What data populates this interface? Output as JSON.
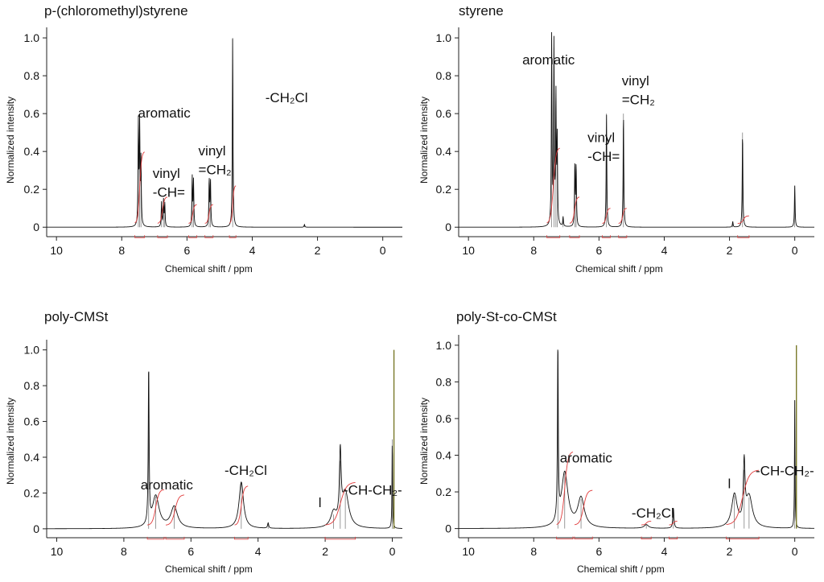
{
  "colors": {
    "spectrum": "#111111",
    "integral": "#e03a3a",
    "tms": "#7a7a2a",
    "axis": "#222222"
  },
  "chart_data": [
    {
      "type": "line",
      "title": "p-(chloromethyl)styrene",
      "xlabel": "Chemical shift / ppm",
      "ylabel": "Normalized intensity",
      "xlim": [
        10.3,
        -0.6
      ],
      "ylim": [
        -0.05,
        1.03
      ],
      "x_ticks": [
        10,
        8,
        6,
        4,
        2,
        0
      ],
      "y_ticks": [
        "0",
        "0.2",
        "0.4",
        "0.6",
        "0.8",
        "1.0"
      ],
      "reversed_x": true,
      "peaks": [
        {
          "x": 7.49,
          "y": 0.54
        },
        {
          "x": 7.45,
          "y": 0.52
        },
        {
          "x": 7.41,
          "y": 0.34
        },
        {
          "x": 6.78,
          "y": 0.13
        },
        {
          "x": 6.72,
          "y": 0.14
        },
        {
          "x": 6.68,
          "y": 0.12
        },
        {
          "x": 5.84,
          "y": 0.26
        },
        {
          "x": 5.8,
          "y": 0.24
        },
        {
          "x": 5.32,
          "y": 0.25
        },
        {
          "x": 5.28,
          "y": 0.24
        },
        {
          "x": 4.6,
          "y": 1.0
        },
        {
          "x": 2.4,
          "y": 0.015
        }
      ],
      "integrals": [
        {
          "from": 7.6,
          "to": 7.3,
          "height": 0.38
        },
        {
          "from": 6.9,
          "to": 6.6,
          "height": 0.14
        },
        {
          "from": 5.95,
          "to": 5.7,
          "height": 0.1
        },
        {
          "from": 5.45,
          "to": 5.2,
          "height": 0.1
        },
        {
          "from": 4.7,
          "to": 4.5,
          "height": 0.2
        }
      ],
      "annotations": [
        {
          "text": "aromatic",
          "x": 7.5,
          "y": 0.58
        },
        {
          "text": "vinyl",
          "x": 7.05,
          "y": 0.26
        },
        {
          "text": "-CH=",
          "x": 7.05,
          "y": 0.16
        },
        {
          "text": "vinyl",
          "x": 5.65,
          "y": 0.38
        },
        {
          "text": "=CH₂",
          "x": 5.65,
          "y": 0.28
        },
        {
          "text": "-CH₂Cl",
          "x": 3.6,
          "y": 0.66
        }
      ]
    },
    {
      "type": "line",
      "title": "styrene",
      "xlabel": "Chemical shift / ppm",
      "ylabel": "Normalized intensity",
      "xlim": [
        10.3,
        -0.6
      ],
      "ylim": [
        -0.05,
        1.03
      ],
      "x_ticks": [
        10,
        8,
        6,
        4,
        2,
        0
      ],
      "y_ticks": [
        "0",
        "0.2",
        "0.4",
        "0.6",
        "0.8",
        "1.0"
      ],
      "reversed_x": true,
      "peaks": [
        {
          "x": 7.45,
          "y": 1.0
        },
        {
          "x": 7.38,
          "y": 0.95
        },
        {
          "x": 7.32,
          "y": 0.68
        },
        {
          "x": 7.28,
          "y": 0.45
        },
        {
          "x": 7.1,
          "y": 0.05
        },
        {
          "x": 6.74,
          "y": 0.32
        },
        {
          "x": 6.7,
          "y": 0.32
        },
        {
          "x": 5.77,
          "y": 0.6
        },
        {
          "x": 5.25,
          "y": 0.6
        },
        {
          "x": 1.6,
          "y": 0.5
        },
        {
          "x": 1.9,
          "y": 0.03
        },
        {
          "x": 0.0,
          "y": 0.22
        }
      ],
      "integrals": [
        {
          "from": 7.6,
          "to": 7.2,
          "height": 0.4
        },
        {
          "from": 6.9,
          "to": 6.6,
          "height": 0.14
        },
        {
          "from": 5.9,
          "to": 5.65,
          "height": 0.08
        },
        {
          "from": 5.4,
          "to": 5.15,
          "height": 0.08
        },
        {
          "from": 1.75,
          "to": 1.4,
          "height": 0.04
        }
      ],
      "annotations": [
        {
          "text": "aromatic",
          "x": 8.35,
          "y": 0.86
        },
        {
          "text": "vinyl",
          "x": 6.35,
          "y": 0.45
        },
        {
          "text": "-CH=",
          "x": 6.35,
          "y": 0.35
        },
        {
          "text": "vinyl",
          "x": 5.3,
          "y": 0.75
        },
        {
          "text": "=CH₂",
          "x": 5.3,
          "y": 0.65
        }
      ]
    },
    {
      "type": "line",
      "title": "poly-CMSt",
      "xlabel": "Chemical shift / ppm",
      "ylabel": "Normalized intensity",
      "xlim": [
        10.3,
        -0.3
      ],
      "ylim": [
        -0.05,
        1.03
      ],
      "x_ticks": [
        10,
        8,
        6,
        4,
        2,
        0
      ],
      "y_ticks": [
        "0",
        "0.2",
        "0.4",
        "0.6",
        "0.8",
        "1.0"
      ],
      "reversed_x": true,
      "peaks": [
        {
          "x": 7.26,
          "y": 0.88,
          "w": 0.015
        },
        {
          "x": 7.05,
          "y": 0.18,
          "w": 0.12
        },
        {
          "x": 6.5,
          "y": 0.12,
          "w": 0.12
        },
        {
          "x": 4.5,
          "y": 0.26,
          "w": 0.08
        },
        {
          "x": 3.7,
          "y": 0.03,
          "w": 0.02
        },
        {
          "x": 1.75,
          "y": 0.08,
          "w": 0.1
        },
        {
          "x": 1.55,
          "y": 0.38,
          "w": 0.03
        },
        {
          "x": 1.4,
          "y": 0.2,
          "w": 0.12
        },
        {
          "x": 0.0,
          "y": 0.5,
          "w": 0.01
        }
      ],
      "tms_line": {
        "x": -0.05,
        "y": 1.0
      },
      "integrals": [
        {
          "from": 7.3,
          "to": 6.8,
          "height": 0.2
        },
        {
          "from": 6.75,
          "to": 6.2,
          "height": 0.17
        },
        {
          "from": 4.7,
          "to": 4.3,
          "height": 0.22
        },
        {
          "from": 2.0,
          "to": 1.1,
          "height": 0.24
        }
      ],
      "annotations": [
        {
          "text": "aromatic",
          "x": 7.5,
          "y": 0.22
        },
        {
          "text": "-CH₂Cl",
          "x": 5.0,
          "y": 0.3
        },
        {
          "text": "-CH-CH₂-",
          "x": 1.45,
          "y": 0.19
        },
        {
          "text": "l",
          "x": 2.2,
          "y": 0.12
        }
      ]
    },
    {
      "type": "line",
      "title": "poly-St-co-CMSt",
      "xlabel": "Chemical shift / ppm",
      "ylabel": "Normalized intensity",
      "xlim": [
        10.3,
        -0.6
      ],
      "ylim": [
        -0.05,
        1.03
      ],
      "x_ticks": [
        10,
        8,
        6,
        4,
        2,
        0
      ],
      "y_ticks": [
        "0",
        "0.2",
        "0.4",
        "0.6",
        "0.8",
        "1.0"
      ],
      "reversed_x": true,
      "peaks": [
        {
          "x": 7.26,
          "y": 0.95,
          "w": 0.015
        },
        {
          "x": 7.05,
          "y": 0.3,
          "w": 0.12
        },
        {
          "x": 6.55,
          "y": 0.16,
          "w": 0.12
        },
        {
          "x": 4.55,
          "y": 0.02,
          "w": 0.08
        },
        {
          "x": 3.72,
          "y": 0.11,
          "w": 0.02
        },
        {
          "x": 1.85,
          "y": 0.18,
          "w": 0.1
        },
        {
          "x": 1.55,
          "y": 0.32,
          "w": 0.03
        },
        {
          "x": 1.4,
          "y": 0.17,
          "w": 0.12
        },
        {
          "x": 0.0,
          "y": 0.7,
          "w": 0.01
        }
      ],
      "tms_line": {
        "x": -0.05,
        "y": 1.0
      },
      "integrals": [
        {
          "from": 7.3,
          "to": 6.8,
          "height": 0.4
        },
        {
          "from": 6.75,
          "to": 6.2,
          "height": 0.19
        },
        {
          "from": 4.7,
          "to": 4.4,
          "height": 0.02
        },
        {
          "from": 3.85,
          "to": 3.6,
          "height": 0.02
        },
        {
          "from": 2.1,
          "to": 1.1,
          "height": 0.3
        }
      ],
      "annotations": [
        {
          "text": "aromatic",
          "x": 7.2,
          "y": 0.36
        },
        {
          "text": "-CH₂Cl",
          "x": 5.0,
          "y": 0.06
        },
        {
          "text": "-CH-CH₂-",
          "x": 1.2,
          "y": 0.29
        },
        {
          "text": "l",
          "x": 2.05,
          "y": 0.22
        }
      ]
    }
  ]
}
